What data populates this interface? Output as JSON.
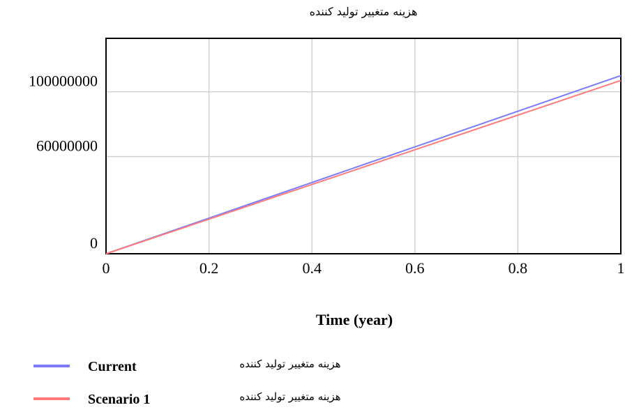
{
  "chart_data": {
    "type": "line",
    "title": "هزینه متغییر تولید کننده",
    "x_label": "Time (year)",
    "x": [
      0,
      0.2,
      0.4,
      0.6,
      0.8,
      1
    ],
    "series": [
      {
        "name": "Current",
        "variable": "هزینه متغییر تولید کننده",
        "color": "#7b7bff",
        "values": [
          0,
          22000000,
          44000000,
          66000000,
          88000000,
          110000000
        ]
      },
      {
        "name": "Scenario 1",
        "variable": "هزینه متغییر تولید کننده",
        "color": "#ff7b7b",
        "values": [
          0,
          21400000,
          42800000,
          64200000,
          85600000,
          107000000
        ]
      }
    ],
    "xlim": [
      0,
      1
    ],
    "xticks": [
      0,
      0.2,
      0.4,
      0.6,
      0.8,
      1
    ],
    "ylim": [
      0,
      133000000
    ],
    "yticks": [
      0,
      60000000,
      100000000
    ],
    "grid": true
  }
}
